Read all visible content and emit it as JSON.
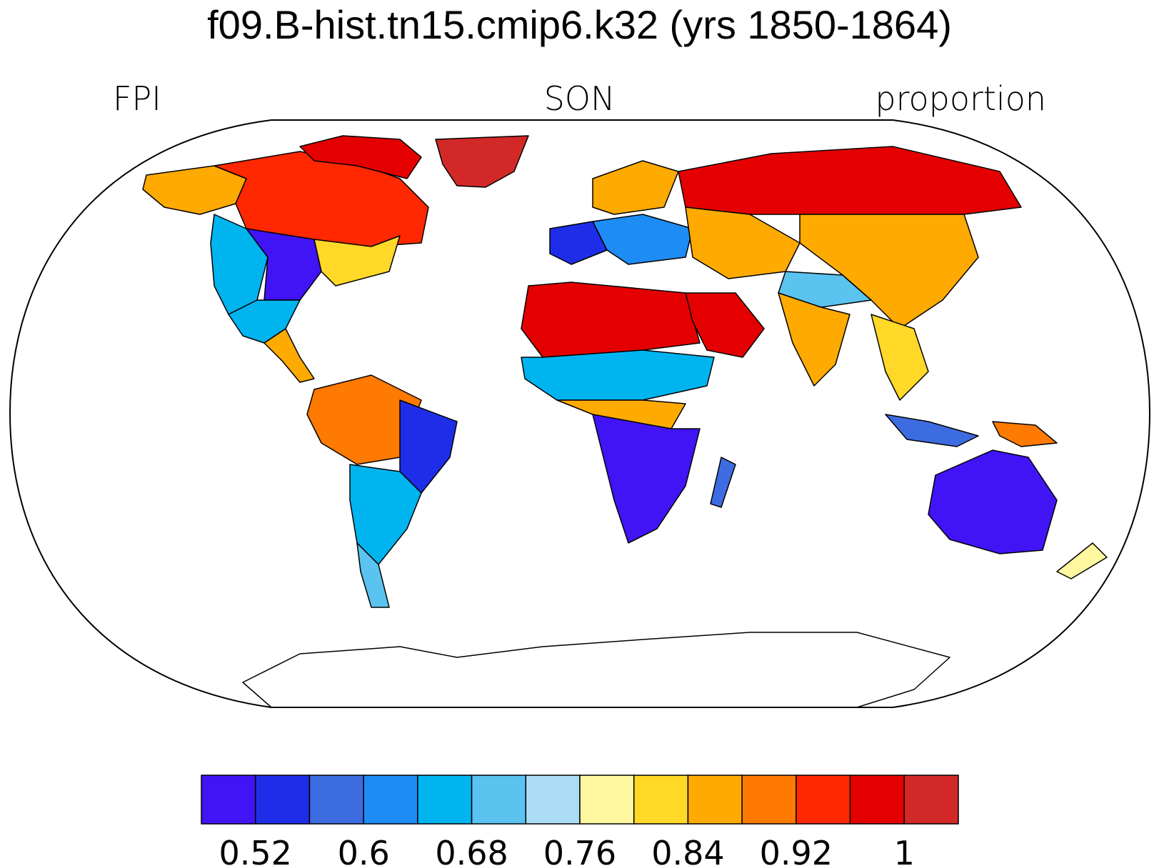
{
  "title": "f09.B-hist.tn15.cmip6.k32 (yrs 1850-1864)",
  "subtitle_left": "FPI",
  "subtitle_center": "SON",
  "subtitle_right": "proportion",
  "colorbar": {
    "colors": [
      "#4014f5",
      "#1e2ee8",
      "#3d6ce0",
      "#1e8cf5",
      "#00b4f0",
      "#5ac3f0",
      "#aadcf5",
      "#fff8a0",
      "#ffd828",
      "#ffaa00",
      "#ff7a00",
      "#ff2800",
      "#e40000",
      "#d22828"
    ],
    "tick_labels": [
      "0.52",
      "0.6",
      "0.68",
      "0.76",
      "0.84",
      "0.92",
      "1"
    ]
  },
  "map": {
    "projection": "Robinson",
    "land_outline_color": "#000000",
    "regions": [
      {
        "name": "Greenland",
        "level": 13
      },
      {
        "name": "Canadian Arctic Archipelago",
        "level": 12
      },
      {
        "name": "Northern Canada",
        "level": 11
      },
      {
        "name": "Alaska",
        "level": 9
      },
      {
        "name": "Western United States",
        "level": 4
      },
      {
        "name": "Central United States",
        "level": 0
      },
      {
        "name": "Eastern United States",
        "level": 8
      },
      {
        "name": "Mexico",
        "level": 4
      },
      {
        "name": "Central America",
        "level": 9
      },
      {
        "name": "Amazon Basin",
        "level": 10
      },
      {
        "name": "Northeast Brazil",
        "level": 1
      },
      {
        "name": "Southern South America",
        "level": 4
      },
      {
        "name": "Patagonia",
        "level": 5
      },
      {
        "name": "Western Europe",
        "level": 1
      },
      {
        "name": "Scandinavia",
        "level": 9
      },
      {
        "name": "Mediterranean",
        "level": 3
      },
      {
        "name": "Sahara",
        "level": 12
      },
      {
        "name": "Arabian Peninsula",
        "level": 12
      },
      {
        "name": "Sahel",
        "level": 4
      },
      {
        "name": "Central Africa",
        "level": 9
      },
      {
        "name": "Southern Africa",
        "level": 0
      },
      {
        "name": "Madagascar",
        "level": 2
      },
      {
        "name": "Siberia",
        "level": 12
      },
      {
        "name": "Central Asia",
        "level": 9
      },
      {
        "name": "Tibetan Plateau",
        "level": 5
      },
      {
        "name": "East Asia",
        "level": 9
      },
      {
        "name": "India",
        "level": 9
      },
      {
        "name": "Southeast Asia",
        "level": 8
      },
      {
        "name": "Maritime Continent",
        "level": 2
      },
      {
        "name": "New Guinea",
        "level": 10
      },
      {
        "name": "Australia",
        "level": 0
      },
      {
        "name": "New Zealand",
        "level": 7
      },
      {
        "name": "Antarctica",
        "level": null
      }
    ]
  }
}
